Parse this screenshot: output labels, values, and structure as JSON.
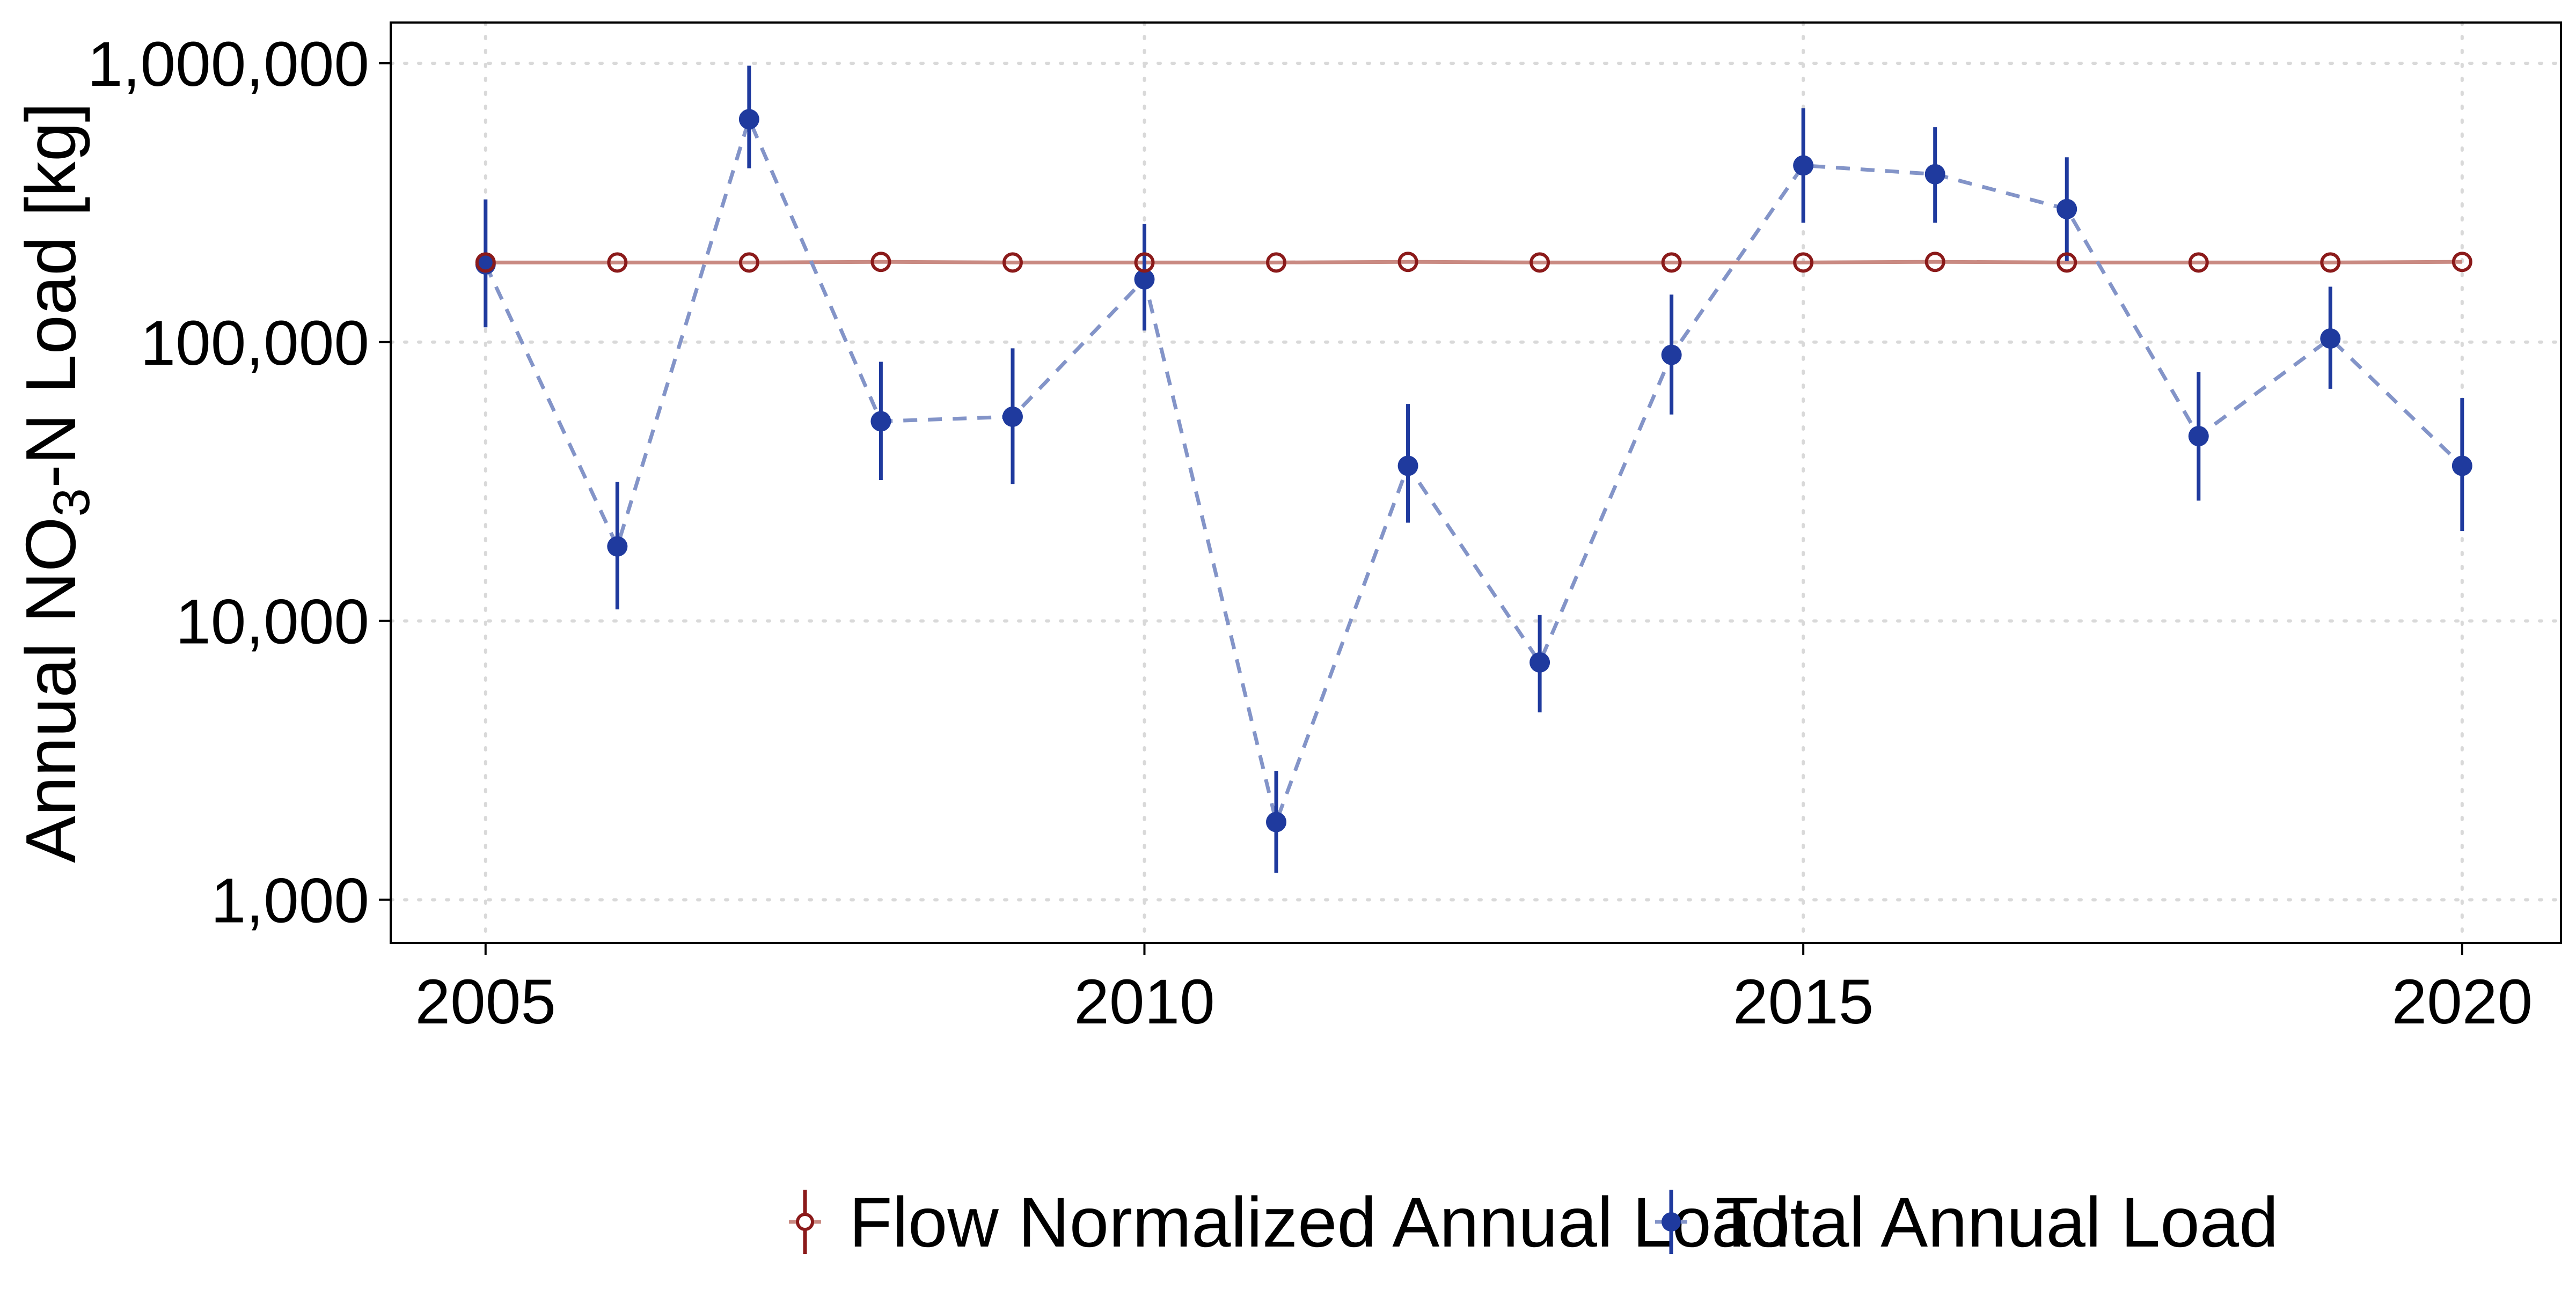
{
  "chart_data": {
    "type": "line",
    "x_scale": "linear",
    "y_scale": "log",
    "xlim": [
      2004.28,
      2020.75
    ],
    "ylim": [
      700,
      1400000
    ],
    "grid": "dotted major gridlines",
    "legend_position": "bottom",
    "ylabel": {
      "prefix": "Annual NO",
      "subscript": "3",
      "suffix": "-N Load [kg]"
    },
    "x_ticks": [
      {
        "value": 2005,
        "label": "2005"
      },
      {
        "value": 2010,
        "label": "2010"
      },
      {
        "value": 2015,
        "label": "2015"
      },
      {
        "value": 2020,
        "label": "2020"
      }
    ],
    "y_ticks": [
      {
        "value": 1000,
        "label": "1,000"
      },
      {
        "value": 10000,
        "label": "10,000"
      },
      {
        "value": 100000,
        "label": "100,000"
      },
      {
        "value": 1000000,
        "label": "1,000,000"
      }
    ],
    "series": [
      {
        "name": "Flow Normalized Annual Load",
        "color": "#8b1a1a",
        "line_color": "#c98a82",
        "marker": "open-circle",
        "line_style": "solid",
        "x": [
          2005,
          2006,
          2007,
          2008,
          2009,
          2010,
          2011,
          2012,
          2013,
          2014,
          2015,
          2016,
          2017,
          2018,
          2019,
          2020
        ],
        "y": [
          193000,
          193000,
          193000,
          194000,
          193000,
          193000,
          193000,
          194000,
          193000,
          193000,
          193000,
          194000,
          193000,
          193000,
          193000,
          194000
        ]
      },
      {
        "name": "Total Annual Load",
        "color": "#1f3a9e",
        "line_color": "#8394c8",
        "marker": "filled-circle",
        "line_style": "dashed",
        "x": [
          2005,
          2006,
          2007,
          2008,
          2009,
          2010,
          2011,
          2012,
          2013,
          2014,
          2015,
          2016,
          2017,
          2018,
          2019,
          2020
        ],
        "y": [
          190000,
          18500,
          630000,
          52000,
          54000,
          168000,
          1900,
          36000,
          7100,
          90000,
          430000,
          400000,
          300000,
          46000,
          103000,
          36000
        ],
        "y_lower": [
          113000,
          11000,
          420000,
          32000,
          31000,
          110000,
          1250,
          22500,
          4700,
          55000,
          268000,
          268000,
          195000,
          27000,
          68000,
          21000
        ],
        "y_upper": [
          325000,
          31500,
          980000,
          85000,
          95000,
          265000,
          2900,
          60000,
          10500,
          148000,
          690000,
          590000,
          460000,
          78000,
          158000,
          63000
        ]
      }
    ]
  }
}
